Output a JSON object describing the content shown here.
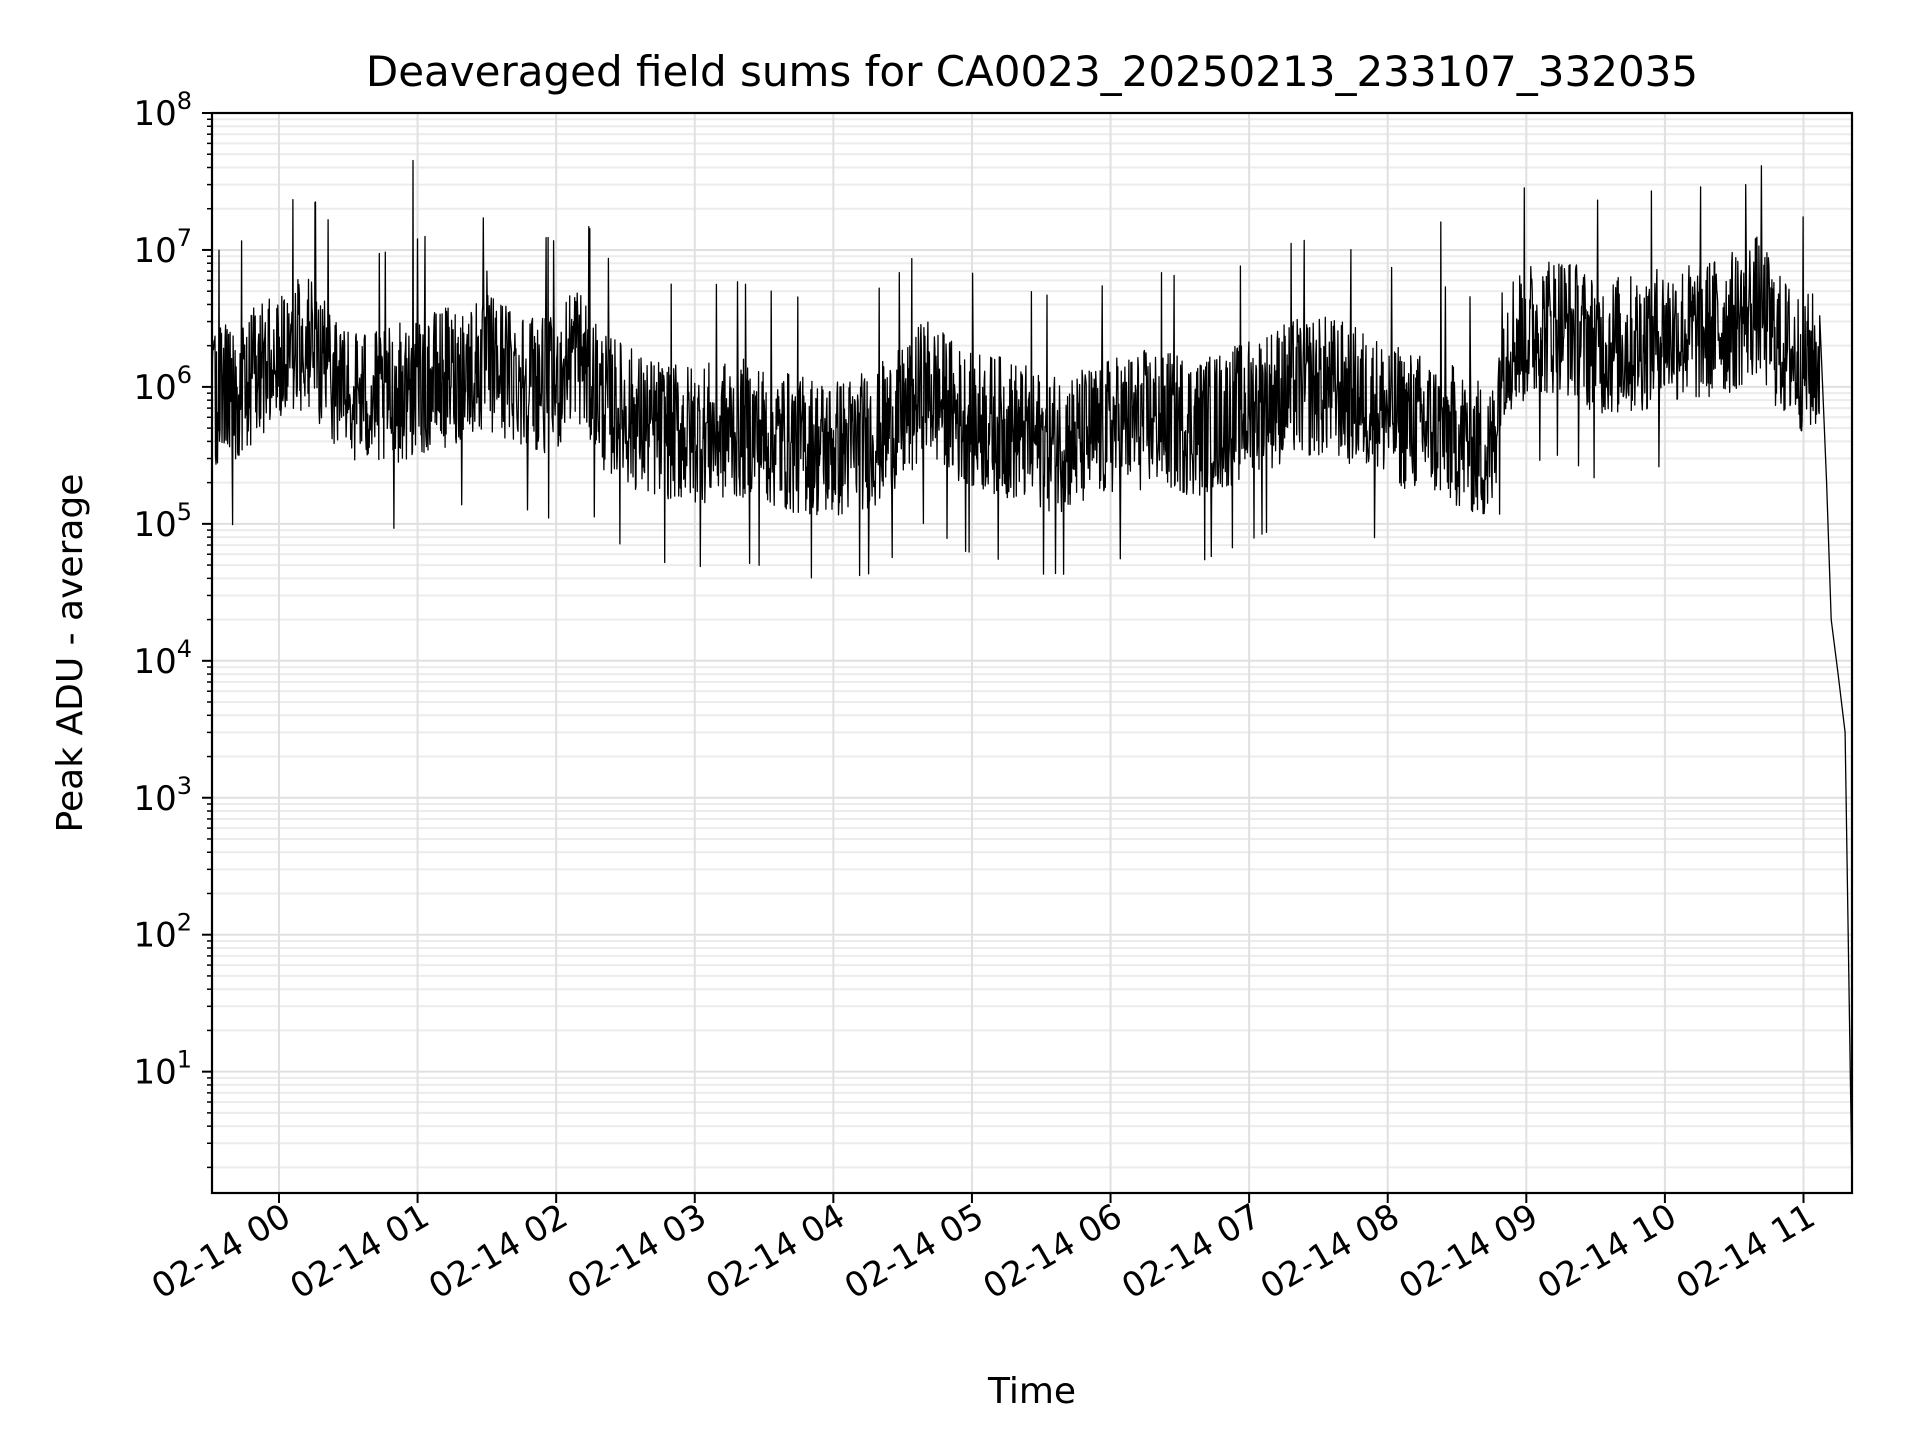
{
  "chart_data": {
    "type": "line",
    "title": "Deaveraged field sums for CA0023_20250213_233107_332035",
    "xlabel": "Time",
    "ylabel": "Peak ADU - average",
    "yscale": "log",
    "ylim": [
      1.3,
      100000000
    ],
    "xlim": [
      "2025-02-13 23:31",
      "2025-02-14 11:21"
    ],
    "grid": true,
    "x_tick_labels": [
      "02-14 00",
      "02-14 01",
      "02-14 02",
      "02-14 03",
      "02-14 04",
      "02-14 05",
      "02-14 06",
      "02-14 07",
      "02-14 08",
      "02-14 09",
      "02-14 10",
      "02-14 11"
    ],
    "x_tick_times": [
      "2025-02-14 00:00",
      "2025-02-14 01:00",
      "2025-02-14 02:00",
      "2025-02-14 03:00",
      "2025-02-14 04:00",
      "2025-02-14 05:00",
      "2025-02-14 06:00",
      "2025-02-14 07:00",
      "2025-02-14 08:00",
      "2025-02-14 09:00",
      "2025-02-14 10:00",
      "2025-02-14 11:00"
    ],
    "y_tick_values": [
      10,
      100,
      1000,
      10000,
      100000,
      1000000,
      10000000,
      100000000
    ],
    "y_tick_labels": [
      {
        "base": "10",
        "exp": "1"
      },
      {
        "base": "10",
        "exp": "2"
      },
      {
        "base": "10",
        "exp": "3"
      },
      {
        "base": "10",
        "exp": "4"
      },
      {
        "base": "10",
        "exp": "5"
      },
      {
        "base": "10",
        "exp": "6"
      },
      {
        "base": "10",
        "exp": "7"
      },
      {
        "base": "10",
        "exp": "8"
      }
    ],
    "series_color": "#000000",
    "series": [
      {
        "x": [
          "2025-02-13 23:31",
          "2025-02-13 23:45",
          "2025-02-14 00:00",
          "2025-02-14 00:15",
          "2025-02-14 00:30",
          "2025-02-14 00:45",
          "2025-02-14 00:58",
          "2025-02-14 01:15",
          "2025-02-14 01:30",
          "2025-02-14 01:45",
          "2025-02-14 02:00",
          "2025-02-14 02:08",
          "2025-02-14 02:20",
          "2025-02-14 02:40",
          "2025-02-14 03:00",
          "2025-02-14 03:20",
          "2025-02-14 03:40",
          "2025-02-14 04:00",
          "2025-02-14 04:15",
          "2025-02-14 04:30",
          "2025-02-14 04:40",
          "2025-02-14 04:55",
          "2025-02-14 05:15",
          "2025-02-14 05:30",
          "2025-02-14 05:45",
          "2025-02-14 06:00",
          "2025-02-14 06:20",
          "2025-02-14 06:40",
          "2025-02-14 07:00",
          "2025-02-14 07:20",
          "2025-02-14 07:35",
          "2025-02-14 07:50",
          "2025-02-14 08:05",
          "2025-02-14 08:20",
          "2025-02-14 08:35",
          "2025-02-14 08:45",
          "2025-02-14 08:50",
          "2025-02-14 09:00",
          "2025-02-14 09:15",
          "2025-02-14 09:30",
          "2025-02-14 09:45",
          "2025-02-14 10:00",
          "2025-02-14 10:15",
          "2025-02-14 10:30",
          "2025-02-14 10:40",
          "2025-02-14 10:50",
          "2025-02-14 11:00",
          "2025-02-14 11:07",
          "2025-02-14 11:10",
          "2025-02-14 11:12",
          "2025-02-14 11:15",
          "2025-02-14 11:18",
          "2025-02-14 11:21"
        ],
        "values": [
          800000,
          1000000,
          2000000,
          2000000,
          900000,
          800000,
          1000000,
          1200000,
          1500000,
          1200000,
          1000000,
          2000000,
          800000,
          500000,
          450000,
          500000,
          400000,
          350000,
          400000,
          600000,
          1000000,
          600000,
          500000,
          400000,
          400000,
          500000,
          600000,
          500000,
          700000,
          1000000,
          1000000,
          800000,
          600000,
          500000,
          400000,
          300000,
          2000000,
          2500000,
          3000000,
          2000000,
          2000000,
          2500000,
          2500000,
          3000000,
          4000000,
          2000000,
          1500000,
          1500000,
          200000,
          20000,
          8000,
          3000,
          1.5
        ]
      }
    ]
  }
}
